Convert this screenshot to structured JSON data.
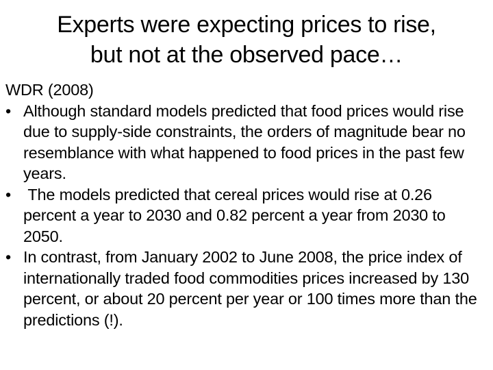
{
  "slide": {
    "title_lines": [
      "Experts were expecting prices to rise,",
      "but not at the observed pace…"
    ],
    "heading": "WDR (2008)",
    "bullet_symbol": "•",
    "bullets": [
      "Although standard models predicted that food prices would rise due to supply-side constraints, the orders of magnitude bear no resemblance with what happened to food prices in the past few years.",
      " The models predicted that cereal prices would rise at 0.26 percent a year to 2030 and 0.82 percent a year from 2030 to 2050.",
      "In contrast, from January 2002 to June 2008, the price index of internationally traded food commodities prices increased by 130 percent, or about 20 percent per year or 100 times more than the predictions (!)."
    ]
  }
}
